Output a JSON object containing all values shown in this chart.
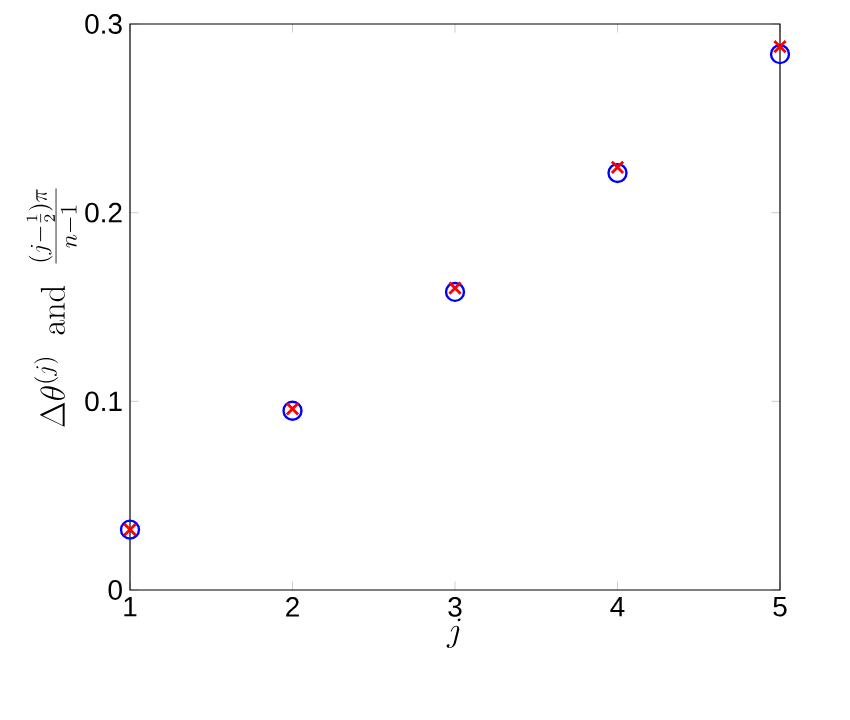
{
  "chart_data": {
    "type": "scatter",
    "xlabel": "j",
    "ylabel": "\\Delta\\theta^{(j)}\\ \\ \\mathrm{and}\\ \\ \\frac{(j-\\frac{1}{2})\\pi}{n-1}",
    "x": [
      1,
      2,
      3,
      4,
      5
    ],
    "series": [
      {
        "color": "#0000ff",
        "marker": "circle",
        "values": [
          0.032,
          0.095,
          0.158,
          0.221,
          0.284
        ]
      },
      {
        "color": "#ff0000",
        "marker": "cross",
        "values": [
          0.032,
          0.096,
          0.16,
          0.224,
          0.288
        ]
      }
    ],
    "xlim": [
      1,
      5
    ],
    "ylim": [
      0,
      0.3
    ],
    "xticks": [
      1,
      2,
      3,
      4,
      5
    ],
    "yticks": [
      0,
      0.1,
      0.2,
      0.3
    ],
    "grid": false
  }
}
